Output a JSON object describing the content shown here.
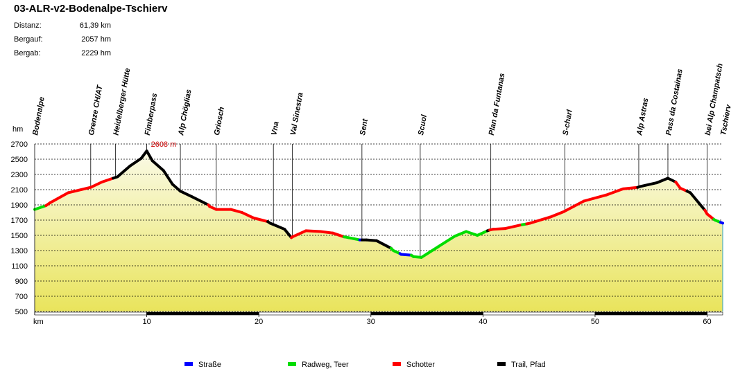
{
  "title": "03-ALR-v2-Bodenalpe-Tschierv",
  "stats": [
    {
      "label": "Distanz:",
      "value": "61,39 km"
    },
    {
      "label": "Bergauf:",
      "value": "2057 hm"
    },
    {
      "label": "Bergab:",
      "value": "2229 hm"
    }
  ],
  "chart_data": {
    "type": "area",
    "title": "03-ALR-v2-Bodenalpe-Tschierv",
    "xlabel": "km",
    "ylabel": "hm",
    "xlim": [
      0,
      61.39
    ],
    "ylim": [
      500,
      2700
    ],
    "x_ticks": [
      10,
      20,
      30,
      40,
      50,
      60
    ],
    "y_ticks": [
      500,
      700,
      900,
      1100,
      1300,
      1500,
      1700,
      1900,
      2100,
      2300,
      2500,
      2700
    ],
    "grid": true,
    "max_annotation": {
      "x": 10,
      "y": 2608,
      "text": "2608 m"
    },
    "colors": {
      "Straße": "#0000ff",
      "Radweg, Teer": "#00dd00",
      "Schotter": "#ff0000",
      "Trail, Pfad": "#000000",
      "fill_top": "#fafae6",
      "fill_bottom": "#e9e45c"
    },
    "profile": [
      {
        "x": 0,
        "y": 1840,
        "type": "Radweg, Teer"
      },
      {
        "x": 1,
        "y": 1890,
        "type": "Radweg, Teer"
      },
      {
        "x": 1.4,
        "y": 1930,
        "type": "Schotter"
      },
      {
        "x": 3,
        "y": 2060,
        "type": "Schotter"
      },
      {
        "x": 5,
        "y": 2130,
        "type": "Schotter"
      },
      {
        "x": 6,
        "y": 2200,
        "type": "Schotter"
      },
      {
        "x": 7,
        "y": 2250,
        "type": "Schotter"
      },
      {
        "x": 7.4,
        "y": 2270,
        "type": "Trail, Pfad"
      },
      {
        "x": 8.5,
        "y": 2410,
        "type": "Trail, Pfad"
      },
      {
        "x": 9.5,
        "y": 2510,
        "type": "Trail, Pfad"
      },
      {
        "x": 10,
        "y": 2608,
        "type": "Trail, Pfad"
      },
      {
        "x": 10.5,
        "y": 2480,
        "type": "Trail, Pfad"
      },
      {
        "x": 11.5,
        "y": 2350,
        "type": "Trail, Pfad"
      },
      {
        "x": 12.3,
        "y": 2170,
        "type": "Trail, Pfad"
      },
      {
        "x": 13,
        "y": 2080,
        "type": "Trail, Pfad"
      },
      {
        "x": 14,
        "y": 2010,
        "type": "Trail, Pfad"
      },
      {
        "x": 15.5,
        "y": 1900,
        "type": "Trail, Pfad"
      },
      {
        "x": 15.6,
        "y": 1880,
        "type": "Schotter"
      },
      {
        "x": 16.2,
        "y": 1840,
        "type": "Schotter"
      },
      {
        "x": 17.5,
        "y": 1840,
        "type": "Schotter"
      },
      {
        "x": 18.5,
        "y": 1800,
        "type": "Schotter"
      },
      {
        "x": 19.5,
        "y": 1730,
        "type": "Schotter"
      },
      {
        "x": 20.8,
        "y": 1680,
        "type": "Schotter"
      },
      {
        "x": 21,
        "y": 1660,
        "type": "Trail, Pfad"
      },
      {
        "x": 22.3,
        "y": 1580,
        "type": "Trail, Pfad"
      },
      {
        "x": 22.9,
        "y": 1470,
        "type": "Trail, Pfad"
      },
      {
        "x": 23,
        "y": 1480,
        "type": "Schotter"
      },
      {
        "x": 24.2,
        "y": 1560,
        "type": "Schotter"
      },
      {
        "x": 25.5,
        "y": 1550,
        "type": "Schotter"
      },
      {
        "x": 26.6,
        "y": 1530,
        "type": "Schotter"
      },
      {
        "x": 27.6,
        "y": 1480,
        "type": "Schotter"
      },
      {
        "x": 28,
        "y": 1470,
        "type": "Radweg, Teer"
      },
      {
        "x": 29,
        "y": 1440,
        "type": "Radweg, Teer"
      },
      {
        "x": 29.2,
        "y": 1440,
        "type": "Straße"
      },
      {
        "x": 29.6,
        "y": 1440,
        "type": "Trail, Pfad"
      },
      {
        "x": 30.5,
        "y": 1430,
        "type": "Trail, Pfad"
      },
      {
        "x": 31.8,
        "y": 1330,
        "type": "Trail, Pfad"
      },
      {
        "x": 32,
        "y": 1300,
        "type": "Radweg, Teer"
      },
      {
        "x": 32.6,
        "y": 1260,
        "type": "Radweg, Teer"
      },
      {
        "x": 32.7,
        "y": 1250,
        "type": "Straße"
      },
      {
        "x": 33.6,
        "y": 1240,
        "type": "Straße"
      },
      {
        "x": 33.8,
        "y": 1220,
        "type": "Radweg, Teer"
      },
      {
        "x": 34.5,
        "y": 1210,
        "type": "Radweg, Teer"
      },
      {
        "x": 36,
        "y": 1350,
        "type": "Radweg, Teer"
      },
      {
        "x": 37.5,
        "y": 1490,
        "type": "Radweg, Teer"
      },
      {
        "x": 38.5,
        "y": 1550,
        "type": "Radweg, Teer"
      },
      {
        "x": 39.5,
        "y": 1500,
        "type": "Radweg, Teer"
      },
      {
        "x": 40.4,
        "y": 1560,
        "type": "Radweg, Teer"
      },
      {
        "x": 40.6,
        "y": 1570,
        "type": "Trail, Pfad"
      },
      {
        "x": 40.9,
        "y": 1580,
        "type": "Schotter"
      },
      {
        "x": 42,
        "y": 1590,
        "type": "Schotter"
      },
      {
        "x": 43.5,
        "y": 1640,
        "type": "Schotter"
      },
      {
        "x": 43.9,
        "y": 1650,
        "type": "Radweg, Teer"
      },
      {
        "x": 44.2,
        "y": 1660,
        "type": "Schotter"
      },
      {
        "x": 46,
        "y": 1740,
        "type": "Schotter"
      },
      {
        "x": 47.2,
        "y": 1810,
        "type": "Schotter"
      },
      {
        "x": 49,
        "y": 1950,
        "type": "Schotter"
      },
      {
        "x": 51,
        "y": 2030,
        "type": "Schotter"
      },
      {
        "x": 52.5,
        "y": 2110,
        "type": "Schotter"
      },
      {
        "x": 53.8,
        "y": 2130,
        "type": "Schotter"
      },
      {
        "x": 54,
        "y": 2140,
        "type": "Trail, Pfad"
      },
      {
        "x": 55.5,
        "y": 2190,
        "type": "Trail, Pfad"
      },
      {
        "x": 56.5,
        "y": 2250,
        "type": "Trail, Pfad"
      },
      {
        "x": 57.2,
        "y": 2200,
        "type": "Trail, Pfad"
      },
      {
        "x": 57.6,
        "y": 2120,
        "type": "Schotter"
      },
      {
        "x": 58.2,
        "y": 2080,
        "type": "Schotter"
      },
      {
        "x": 58.5,
        "y": 2060,
        "type": "Trail, Pfad"
      },
      {
        "x": 59.8,
        "y": 1830,
        "type": "Trail, Pfad"
      },
      {
        "x": 60,
        "y": 1780,
        "type": "Schotter"
      },
      {
        "x": 60.6,
        "y": 1710,
        "type": "Schotter"
      },
      {
        "x": 60.7,
        "y": 1700,
        "type": "Radweg, Teer"
      },
      {
        "x": 61.2,
        "y": 1670,
        "type": "Radweg, Teer"
      },
      {
        "x": 61.39,
        "y": 1660,
        "type": "Straße"
      }
    ],
    "waypoints": [
      {
        "name": "Bodenalpe",
        "x": 0,
        "y": 1840
      },
      {
        "name": "Grenze CH/AT",
        "x": 5,
        "y": 2130
      },
      {
        "name": "Heidelberger Hütte",
        "x": 7.2,
        "y": 2260
      },
      {
        "name": "Fimberpass",
        "x": 10,
        "y": 2608
      },
      {
        "name": "Alp Chöglias",
        "x": 13,
        "y": 2080
      },
      {
        "name": "Griosch",
        "x": 16.2,
        "y": 1840
      },
      {
        "name": "Vna",
        "x": 21.3,
        "y": 1640
      },
      {
        "name": "Val Sinestra",
        "x": 23,
        "y": 1480
      },
      {
        "name": "Sent",
        "x": 29.2,
        "y": 1440
      },
      {
        "name": "Scuol",
        "x": 34.4,
        "y": 1210
      },
      {
        "name": "Plan da Funtanas",
        "x": 40.7,
        "y": 1570
      },
      {
        "name": "S-charl",
        "x": 47.3,
        "y": 1810
      },
      {
        "name": "Alp Astras",
        "x": 53.9,
        "y": 2135
      },
      {
        "name": "Pass da Costainas",
        "x": 56.5,
        "y": 2250
      },
      {
        "name": "bei Alp Champatsch",
        "x": 60,
        "y": 1780
      },
      {
        "name": "Tschierv",
        "x": 61.39,
        "y": 1660
      }
    ],
    "legend": [
      {
        "label": "Straße",
        "color": "#0000ff"
      },
      {
        "label": "Radweg, Teer",
        "color": "#00dd00"
      },
      {
        "label": "Schotter",
        "color": "#ff0000"
      },
      {
        "label": "Trail, Pfad",
        "color": "#000000"
      }
    ],
    "legend_placement": "bottom"
  }
}
